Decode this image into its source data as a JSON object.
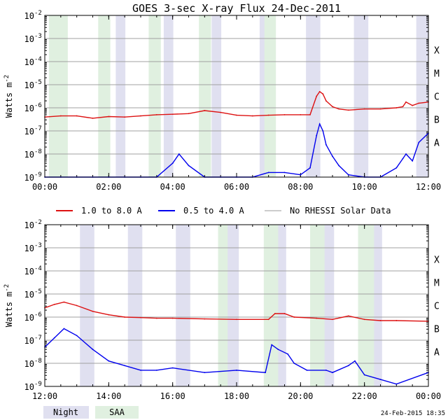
{
  "title": "GOES 3-sec X-ray Flux   24-Dec-2011",
  "ylabel": "Watts m",
  "ylabel_sup": "-2",
  "y_tick_labels": [
    "10",
    "10",
    "10",
    "10",
    "10",
    "10",
    "10",
    "10"
  ],
  "y_tick_exps": [
    "-2",
    "-3",
    "-4",
    "-5",
    "-6",
    "-7",
    "-8",
    "-9"
  ],
  "flare_classes": [
    "X",
    "M",
    "C",
    "B",
    "A"
  ],
  "legend": {
    "long": "1.0 to 8.0 A",
    "short": "0.5 to 4.0 A",
    "nodata": "No RHESSI Solar Data",
    "night": "Night",
    "saa": "SAA"
  },
  "timestamp": "24-Feb-2015 18:35",
  "colors": {
    "long": "#dd1111",
    "short": "#0000ee",
    "nodata": "#999999",
    "night": "#e0e0f0",
    "saa": "#e0f0e0",
    "grid": "#a0a0a0"
  },
  "chart_data": [
    {
      "type": "line",
      "panel": "top",
      "x_tick_labels": [
        "00:00",
        "02:00",
        "04:00",
        "06:00",
        "08:00",
        "10:00",
        "12:00"
      ],
      "x_range_hours": [
        0,
        12
      ],
      "ylim_log10": [
        -9,
        -2
      ],
      "night_intervals": [
        [
          0.13,
          0.53
        ],
        [
          2.22,
          2.52
        ],
        [
          3.72,
          4.02
        ],
        [
          5.22,
          5.52
        ],
        [
          6.72,
          7.02
        ],
        [
          8.17,
          8.62
        ],
        [
          9.67,
          10.12
        ],
        [
          11.62,
          12.0
        ]
      ],
      "saa_intervals": [
        [
          0.13,
          0.72
        ],
        [
          1.67,
          2.05
        ],
        [
          3.25,
          3.63
        ],
        [
          4.82,
          5.2
        ],
        [
          6.87,
          7.23
        ]
      ],
      "series": [
        {
          "name": "1.0 to 8.0 A",
          "x": [
            0,
            0.5,
            1,
            1.5,
            2,
            2.5,
            3,
            3.5,
            4,
            4.5,
            5,
            5.5,
            6,
            6.5,
            7,
            7.5,
            8,
            8.3,
            8.5,
            8.6,
            8.7,
            8.8,
            9,
            9.2,
            9.5,
            10,
            10.5,
            11,
            11.2,
            11.3,
            11.5,
            11.7,
            12
          ],
          "log_flux": [
            -6.4,
            -6.35,
            -6.35,
            -6.45,
            -6.38,
            -6.4,
            -6.35,
            -6.3,
            -6.28,
            -6.25,
            -6.12,
            -6.2,
            -6.32,
            -6.35,
            -6.32,
            -6.3,
            -6.3,
            -6.3,
            -5.5,
            -5.3,
            -5.4,
            -5.7,
            -5.95,
            -6.05,
            -6.1,
            -6.05,
            -6.05,
            -6.0,
            -5.95,
            -5.75,
            -5.9,
            -5.8,
            -5.75
          ]
        },
        {
          "name": "0.5 to 4.0 A",
          "x": [
            0,
            0.5,
            1,
            1.5,
            2,
            2.5,
            3,
            3.5,
            4,
            4.2,
            4.5,
            5,
            5.5,
            6,
            6.5,
            7,
            7.5,
            8,
            8.3,
            8.5,
            8.6,
            8.7,
            8.8,
            9,
            9.2,
            9.5,
            10,
            10.5,
            11,
            11.2,
            11.3,
            11.5,
            11.7,
            12
          ],
          "log_flux": [
            -9.0,
            -9.0,
            -9.0,
            -9.0,
            -9.0,
            -9.0,
            -9.0,
            -9.0,
            -8.4,
            -8.0,
            -8.5,
            -9.0,
            -9.0,
            -9.0,
            -9.0,
            -8.8,
            -8.8,
            -8.9,
            -8.6,
            -7.2,
            -6.7,
            -7.0,
            -7.6,
            -8.1,
            -8.5,
            -8.9,
            -9.0,
            -9.0,
            -8.6,
            -8.2,
            -8.0,
            -8.3,
            -7.5,
            -7.1
          ]
        }
      ]
    },
    {
      "type": "line",
      "panel": "bottom",
      "x_tick_labels": [
        "12:00",
        "14:00",
        "16:00",
        "18:00",
        "20:00",
        "22:00",
        "00:00"
      ],
      "x_range_hours": [
        12,
        24
      ],
      "ylim_log10": [
        -9,
        -2
      ],
      "night_intervals": [
        [
          13.1,
          13.55
        ],
        [
          14.6,
          15.05
        ],
        [
          16.1,
          16.55
        ],
        [
          17.62,
          18.07
        ],
        [
          19.12,
          19.55
        ],
        [
          20.62,
          21.05
        ],
        [
          22.12,
          22.55
        ]
      ],
      "saa_intervals": [
        [
          17.42,
          17.72
        ],
        [
          18.85,
          19.3
        ],
        [
          20.3,
          20.75
        ],
        [
          21.8,
          22.3
        ]
      ],
      "series": [
        {
          "name": "1.0 to 8.0 A",
          "x": [
            12,
            12.3,
            12.6,
            13,
            13.5,
            14,
            14.5,
            15,
            15.5,
            16,
            17,
            18,
            19,
            19.2,
            19.5,
            19.8,
            20.5,
            21,
            21.5,
            22,
            22.5,
            23,
            24
          ],
          "log_flux": [
            -5.6,
            -5.45,
            -5.35,
            -5.5,
            -5.75,
            -5.9,
            -6.0,
            -6.02,
            -6.05,
            -6.05,
            -6.08,
            -6.1,
            -6.1,
            -5.85,
            -5.85,
            -6.0,
            -6.05,
            -6.1,
            -5.95,
            -6.1,
            -6.15,
            -6.15,
            -6.18
          ]
        },
        {
          "name": "0.5 to 4.0 A",
          "x": [
            12,
            12.3,
            12.6,
            13,
            13.5,
            14,
            14.5,
            15,
            15.5,
            16,
            17,
            18,
            18.9,
            19.1,
            19.3,
            19.6,
            19.8,
            20.2,
            20.8,
            21,
            21.5,
            21.7,
            22,
            22.5,
            23,
            24
          ],
          "log_flux": [
            -7.3,
            -6.9,
            -6.5,
            -6.8,
            -7.4,
            -7.9,
            -8.1,
            -8.3,
            -8.3,
            -8.2,
            -8.4,
            -8.3,
            -8.4,
            -7.2,
            -7.4,
            -7.6,
            -8.0,
            -8.3,
            -8.3,
            -8.4,
            -8.1,
            -7.9,
            -8.5,
            -8.7,
            -8.9,
            -8.4
          ]
        }
      ]
    }
  ]
}
